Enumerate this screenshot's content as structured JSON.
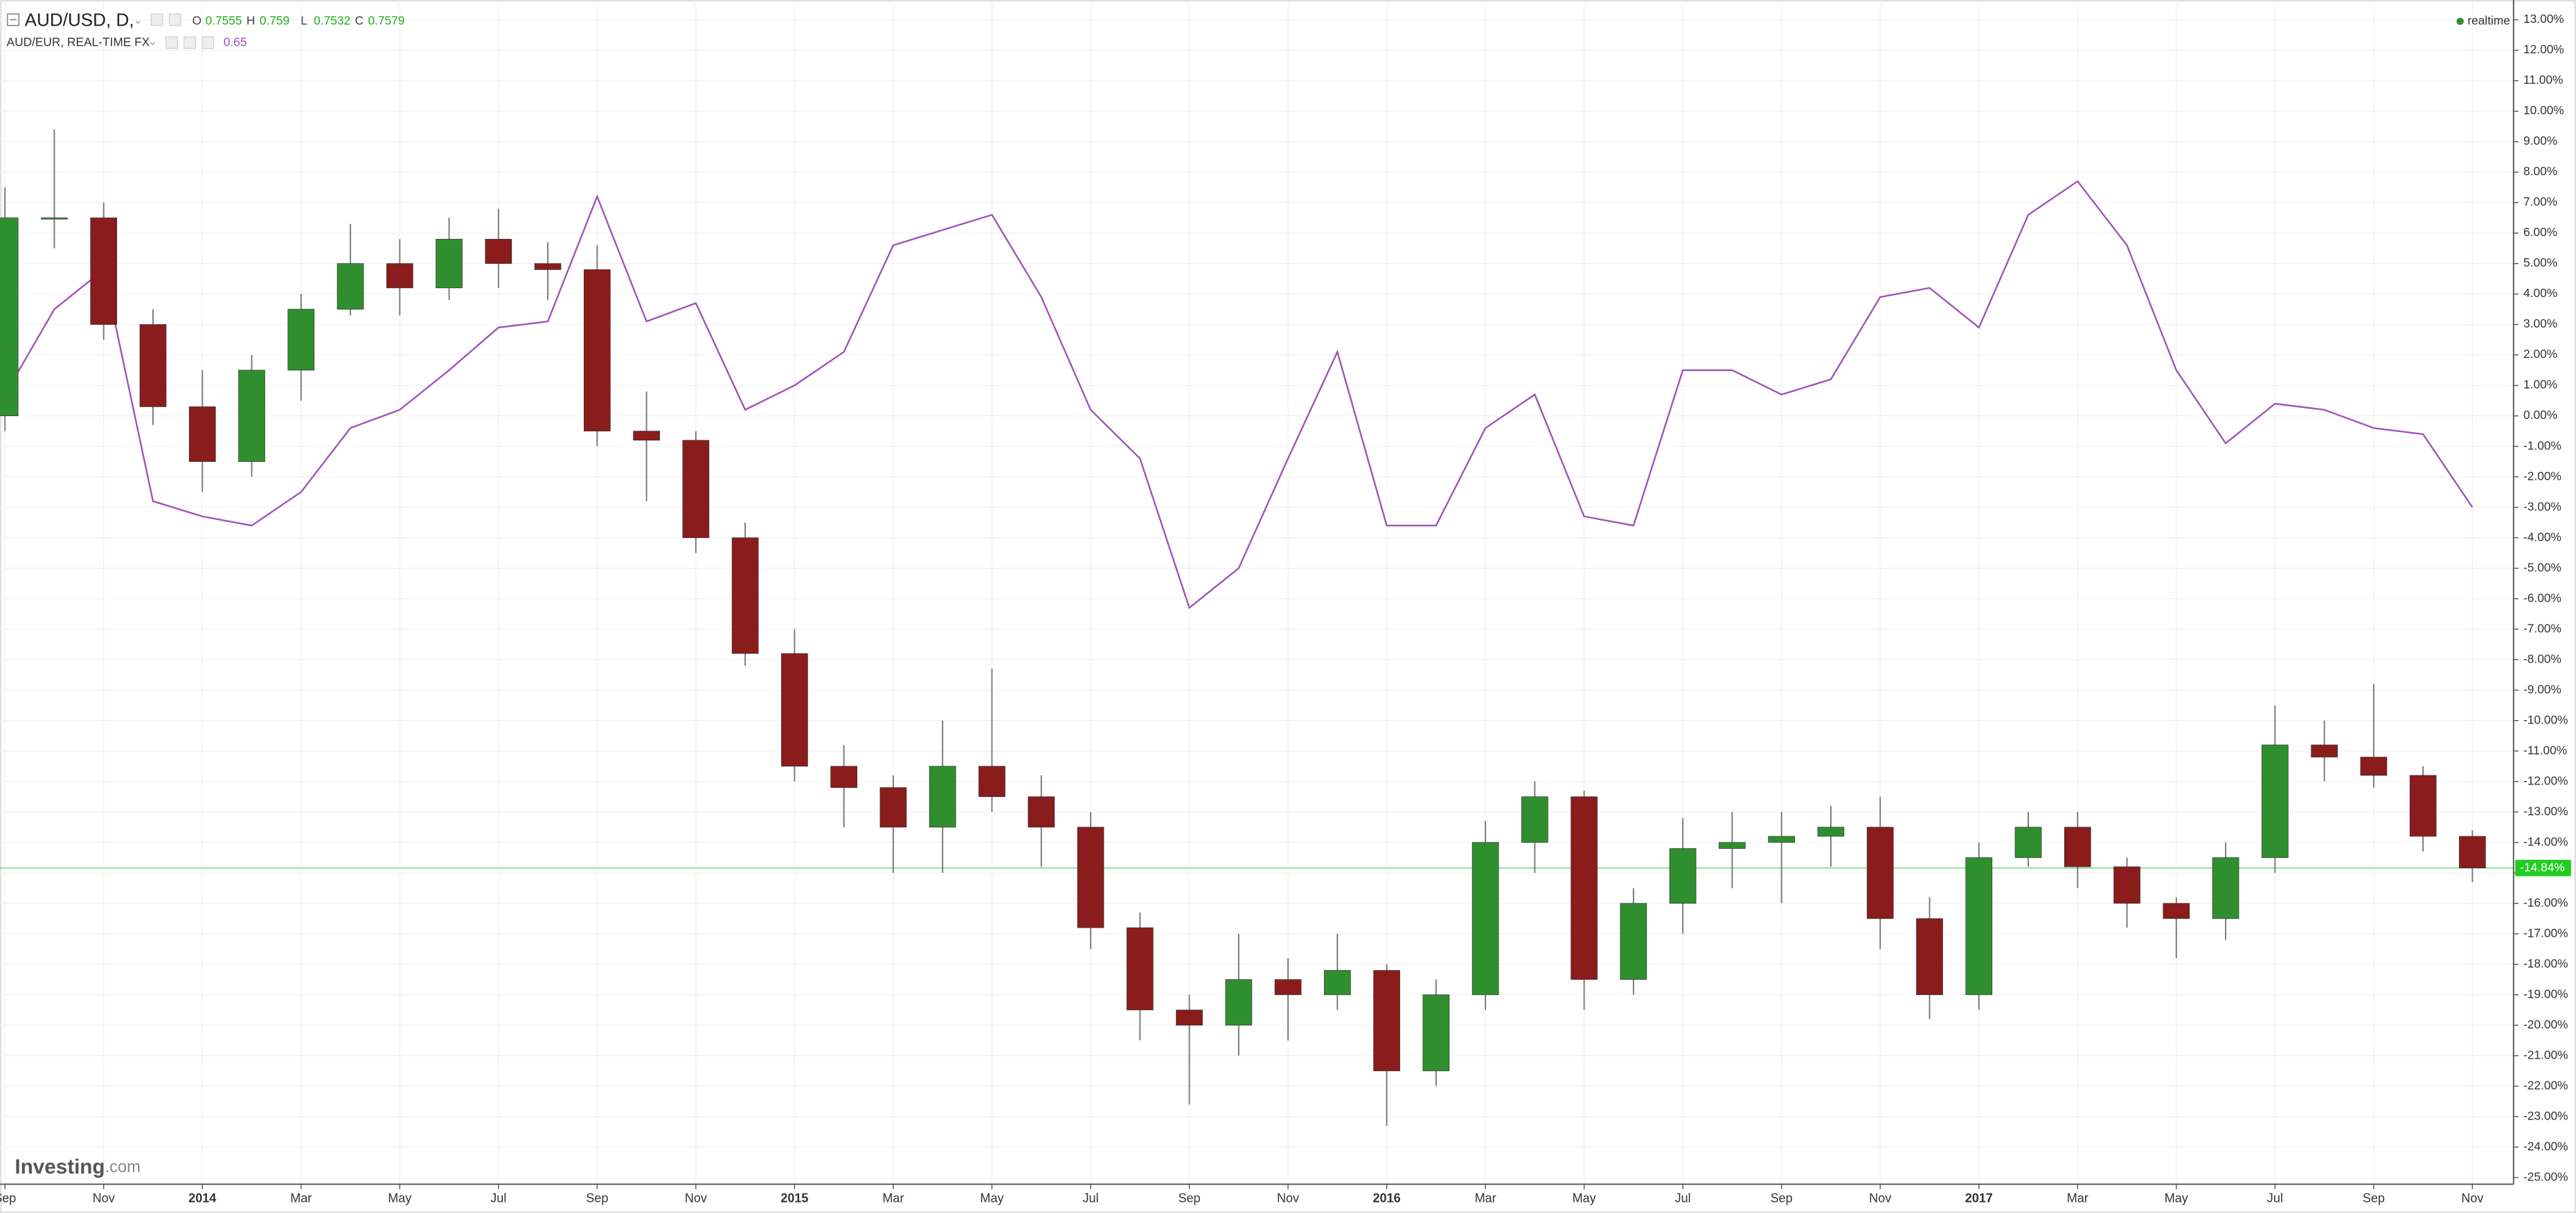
{
  "chart_data": {
    "type": "candlestick",
    "title": "AUD/USD, D,",
    "ohlc": [
      {
        "label": "O",
        "value": 0.7555
      },
      {
        "label": "H",
        "value": 0.759
      },
      {
        "label": "L",
        "value": 0.7532
      },
      {
        "label": "C",
        "value": 0.7579
      }
    ],
    "compare_value": 0.65,
    "status": "realtime",
    "brand": "Investing",
    "brand_suffix": ".com",
    "x": [
      "2013-09",
      "2013-10",
      "2013-11",
      "2013-12",
      "2014-01",
      "2014-02",
      "2014-03",
      "2014-04",
      "2014-05",
      "2014-06",
      "2014-07",
      "2014-08",
      "2014-09",
      "2014-10",
      "2014-11",
      "2014-12",
      "2015-01",
      "2015-02",
      "2015-03",
      "2015-04",
      "2015-05",
      "2015-06",
      "2015-07",
      "2015-08",
      "2015-09",
      "2015-10",
      "2015-11",
      "2015-12",
      "2016-01",
      "2016-02",
      "2016-03",
      "2016-04",
      "2016-05",
      "2016-06",
      "2016-07",
      "2016-08",
      "2016-09",
      "2016-10",
      "2016-11",
      "2016-12",
      "2017-01",
      "2017-02",
      "2017-03",
      "2017-04",
      "2017-05",
      "2017-06",
      "2017-07",
      "2017-08",
      "2017-09",
      "2017-10",
      "2017-11"
    ],
    "open": [
      0,
      6.5,
      6.5,
      3.0,
      0.3,
      -1.5,
      1.5,
      3.5,
      5.0,
      4.2,
      5.8,
      5.0,
      4.8,
      -0.5,
      -0.8,
      -4.0,
      -7.8,
      -11.5,
      -12.2,
      -13.5,
      -11.5,
      -12.5,
      -13.5,
      -16.8,
      -19.5,
      -20.0,
      -18.5,
      -19.0,
      -18.2,
      -21.5,
      -19.0,
      -14.0,
      -12.5,
      -18.5,
      -16.0,
      -14.2,
      -14.0,
      -13.8,
      -13.5,
      -16.5,
      -19.0,
      -14.5,
      -13.5,
      -14.8,
      -16.0,
      -16.5,
      -14.5,
      -10.8,
      -11.2,
      -11.8,
      -13.8
    ],
    "high": [
      7.5,
      9.4,
      7.0,
      3.5,
      1.5,
      2.0,
      4.0,
      6.3,
      5.8,
      6.5,
      6.8,
      5.7,
      5.6,
      0.8,
      -0.5,
      -3.5,
      -7.0,
      -10.8,
      -11.8,
      -10.0,
      -8.3,
      -11.8,
      -13.0,
      -16.3,
      -19.0,
      -17.0,
      -17.8,
      -17.0,
      -18.0,
      -18.5,
      -13.3,
      -12.0,
      -12.3,
      -15.5,
      -13.2,
      -13.0,
      -13.0,
      -12.8,
      -12.5,
      -15.8,
      -14.0,
      -13.0,
      -13.0,
      -14.5,
      -15.8,
      -14.0,
      -9.5,
      -10.0,
      -8.8,
      -11.5,
      -13.6
    ],
    "low": [
      -0.5,
      5.5,
      2.5,
      -0.3,
      -2.5,
      -2.0,
      0.5,
      3.3,
      3.3,
      3.8,
      4.2,
      3.8,
      -1.0,
      -2.8,
      -4.5,
      -8.2,
      -12.0,
      -13.5,
      -15.0,
      -15.0,
      -13.0,
      -14.8,
      -17.5,
      -20.5,
      -22.6,
      -21.0,
      -20.5,
      -19.5,
      -23.3,
      -22.0,
      -19.5,
      -15.0,
      -19.5,
      -19.0,
      -17.0,
      -15.5,
      -16.0,
      -14.8,
      -17.5,
      -19.8,
      -19.5,
      -14.8,
      -15.5,
      -16.8,
      -17.8,
      -17.2,
      -15.0,
      -12.0,
      -12.2,
      -14.3,
      -15.3
    ],
    "close": [
      6.5,
      6.5,
      3.0,
      0.3,
      -1.5,
      1.5,
      3.5,
      5.0,
      4.2,
      5.8,
      5.0,
      4.8,
      -0.5,
      -0.8,
      -4.0,
      -7.8,
      -11.5,
      -12.2,
      -13.5,
      -11.5,
      -12.5,
      -13.5,
      -16.8,
      -19.5,
      -20.0,
      -18.5,
      -19.0,
      -18.2,
      -21.5,
      -19.0,
      -14.0,
      -12.5,
      -18.5,
      -16.0,
      -14.2,
      -14.0,
      -13.8,
      -13.5,
      -16.5,
      -19.0,
      -14.5,
      -13.5,
      -14.8,
      -16.0,
      -16.5,
      -14.5,
      -10.8,
      -11.2,
      -11.8,
      -13.8,
      -14.84
    ],
    "up_color": "#2f8f2f",
    "down_color": "#8b1c1c",
    "wick_color": "#777777",
    "series": [
      {
        "name": "AUD/EUR, REAL-TIME FX",
        "color": "#a052b8",
        "values": [
          0.7,
          3.5,
          4.8,
          -2.8,
          -3.3,
          -3.6,
          -2.5,
          -0.4,
          0.2,
          1.5,
          2.9,
          3.1,
          7.2,
          3.1,
          3.7,
          0.2,
          1.0,
          2.1,
          5.6,
          6.1,
          6.6,
          3.9,
          0.2,
          -1.4,
          -6.3,
          -5.0,
          -1.4,
          2.1,
          -3.6,
          -3.6,
          -0.4,
          0.7,
          -3.3,
          -3.6,
          1.5,
          1.5,
          0.7,
          1.2,
          3.9,
          4.2,
          2.9,
          6.6,
          7.7,
          5.6,
          1.5,
          -0.9,
          0.4,
          0.2,
          -0.4,
          -0.6,
          -3.0
        ]
      }
    ],
    "last_value": -14.84,
    "last_label": "-14.84%",
    "last_color": "#22cc22",
    "xlim": [
      "2013-09",
      "2017-12"
    ],
    "xticks": [
      {
        "value": "2013-09",
        "label": "Sep"
      },
      {
        "value": "2013-11",
        "label": "Nov"
      },
      {
        "value": "2014-01",
        "label": "2014"
      },
      {
        "value": "2014-03",
        "label": "Mar"
      },
      {
        "value": "2014-05",
        "label": "May"
      },
      {
        "value": "2014-07",
        "label": "Jul"
      },
      {
        "value": "2014-09",
        "label": "Sep"
      },
      {
        "value": "2014-11",
        "label": "Nov"
      },
      {
        "value": "2015-01",
        "label": "2015"
      },
      {
        "value": "2015-03",
        "label": "Mar"
      },
      {
        "value": "2015-05",
        "label": "May"
      },
      {
        "value": "2015-07",
        "label": "Jul"
      },
      {
        "value": "2015-09",
        "label": "Sep"
      },
      {
        "value": "2015-11",
        "label": "Nov"
      },
      {
        "value": "2016-01",
        "label": "2016"
      },
      {
        "value": "2016-03",
        "label": "Mar"
      },
      {
        "value": "2016-05",
        "label": "May"
      },
      {
        "value": "2016-07",
        "label": "Jul"
      },
      {
        "value": "2016-09",
        "label": "Sep"
      },
      {
        "value": "2016-11",
        "label": "Nov"
      },
      {
        "value": "2017-01",
        "label": "2017"
      },
      {
        "value": "2017-03",
        "label": "Mar"
      },
      {
        "value": "2017-05",
        "label": "May"
      },
      {
        "value": "2017-07",
        "label": "Jul"
      },
      {
        "value": "2017-09",
        "label": "Sep"
      },
      {
        "value": "2017-11",
        "label": "Nov"
      }
    ],
    "ylim": [
      -25.22,
      13.65
    ],
    "yticks": [
      {
        "value": 13,
        "label": "13.00%"
      },
      {
        "value": 12,
        "label": "12.00%"
      },
      {
        "value": 11,
        "label": "11.00%"
      },
      {
        "value": 10,
        "label": "10.00%"
      },
      {
        "value": 9,
        "label": "9.00%"
      },
      {
        "value": 8,
        "label": "8.00%"
      },
      {
        "value": 7,
        "label": "7.00%"
      },
      {
        "value": 6,
        "label": "6.00%"
      },
      {
        "value": 5,
        "label": "5.00%"
      },
      {
        "value": 4,
        "label": "4.00%"
      },
      {
        "value": 3,
        "label": "3.00%"
      },
      {
        "value": 2,
        "label": "2.00%"
      },
      {
        "value": 1,
        "label": "1.00%"
      },
      {
        "value": 0,
        "label": "0.00%"
      },
      {
        "value": -1,
        "label": "-1.00%"
      },
      {
        "value": -2,
        "label": "-2.00%"
      },
      {
        "value": -3,
        "label": "-3.00%"
      },
      {
        "value": -4,
        "label": "-4.00%"
      },
      {
        "value": -5,
        "label": "-5.00%"
      },
      {
        "value": -6,
        "label": "-6.00%"
      },
      {
        "value": -7,
        "label": "-7.00%"
      },
      {
        "value": -8,
        "label": "-8.00%"
      },
      {
        "value": -9,
        "label": "-9.00%"
      },
      {
        "value": -10,
        "label": "-10.00%"
      },
      {
        "value": -11,
        "label": "-11.00%"
      },
      {
        "value": -12,
        "label": "-12.00%"
      },
      {
        "value": -13,
        "label": "-13.00%"
      },
      {
        "value": -14,
        "label": "-14.00%"
      },
      {
        "value": -15,
        "label": "-15.00%"
      },
      {
        "value": -16,
        "label": "-16.00%"
      },
      {
        "value": -17,
        "label": "-17.00%"
      },
      {
        "value": -18,
        "label": "-18.00%"
      },
      {
        "value": -19,
        "label": "-19.00%"
      },
      {
        "value": -20,
        "label": "-20.00%"
      },
      {
        "value": -21,
        "label": "-21.00%"
      },
      {
        "value": -22,
        "label": "-22.00%"
      },
      {
        "value": -23,
        "label": "-23.00%"
      },
      {
        "value": -24,
        "label": "-24.00%"
      },
      {
        "value": -25,
        "label": "-25.00%"
      }
    ],
    "grid": true
  }
}
